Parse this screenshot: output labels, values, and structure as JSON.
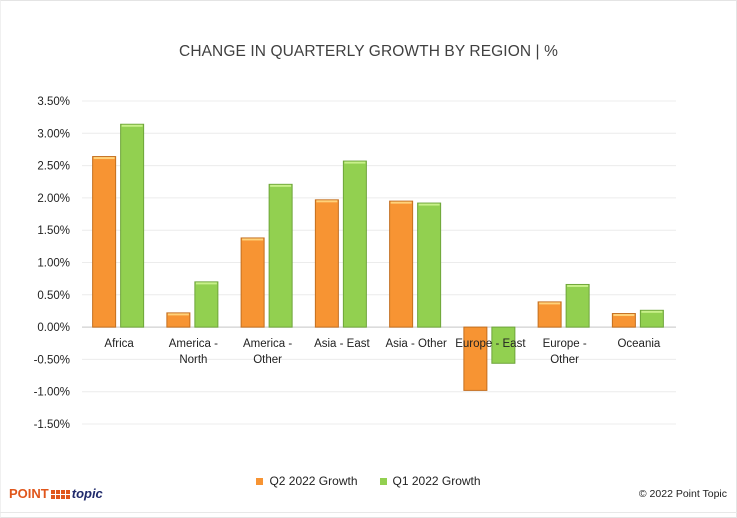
{
  "chart_data": {
    "type": "bar",
    "title": "CHANGE IN QUARTERLY GROWTH BY REGION | %",
    "xlabel": "",
    "ylabel": "",
    "categories": [
      [
        "Africa"
      ],
      [
        "America -",
        "North"
      ],
      [
        "America -",
        "Other"
      ],
      [
        "Asia - East"
      ],
      [
        "Asia - Other"
      ],
      [
        "Europe - East"
      ],
      [
        "Europe -",
        "Other"
      ],
      [
        "Oceania"
      ]
    ],
    "series": [
      {
        "name": "Q2 2022 Growth",
        "color": "#F79433",
        "values": [
          2.64,
          0.22,
          1.38,
          1.97,
          1.95,
          -0.98,
          0.39,
          0.21
        ]
      },
      {
        "name": "Q1 2022 Growth",
        "color": "#92D050",
        "values": [
          3.14,
          0.7,
          2.21,
          2.57,
          1.92,
          -0.56,
          0.66,
          0.26
        ]
      }
    ],
    "ylim": [
      -1.5,
      3.5
    ],
    "yticks": [
      3.5,
      3.0,
      2.5,
      2.0,
      1.5,
      1.0,
      0.5,
      0.0,
      -0.5,
      -1.0,
      -1.5
    ],
    "ytick_labels": [
      "3.50%",
      "3.00%",
      "2.50%",
      "2.00%",
      "1.50%",
      "1.00%",
      "0.50%",
      "0.00%",
      "-0.50%",
      "-1.00%",
      "-1.50%"
    ],
    "grid": true,
    "legend_position": "bottom"
  },
  "legend": [
    {
      "label": "Q2 2022 Growth",
      "color": "#F79433"
    },
    {
      "label": "Q1 2022 Growth",
      "color": "#92D050"
    }
  ],
  "footer": {
    "logo_point": "POINT",
    "logo_topic": "topic",
    "copyright": "© 2022 Point Topic"
  }
}
